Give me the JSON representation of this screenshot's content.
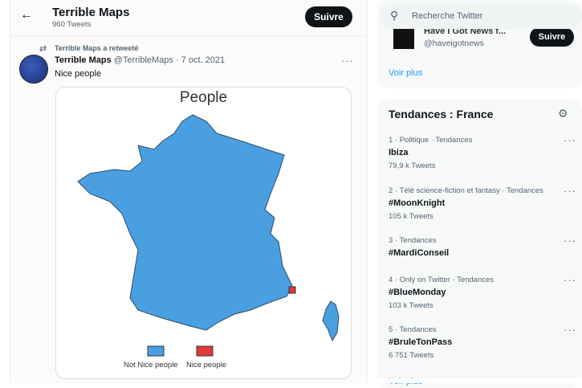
{
  "header": {
    "title": "Terrible Maps",
    "subtitle": "960 Tweets",
    "follow_label": "Suivre"
  },
  "tweet": {
    "retweet_label": "Terrible Maps a retweeté",
    "author": "Terrible Maps",
    "handle_date": "@TerribleMaps · 7 oct. 2021",
    "text": "Nice people",
    "image": {
      "title": "People",
      "legend": [
        {
          "label": "Not Nice people",
          "color": "#4a9fe0"
        },
        {
          "label": "Nice people",
          "color": "#e03a3a"
        }
      ]
    }
  },
  "search": {
    "placeholder": "Recherche Twitter"
  },
  "suggest": {
    "name": "Have I Got News f...",
    "handle": "@haveigotnews",
    "follow_label": "Suivre",
    "more": "Voir plus"
  },
  "trends": {
    "title": "Tendances : France",
    "items": [
      {
        "meta": "1 · Politique · Tendances",
        "tag": "Ibiza",
        "count": "79,9 k Tweets"
      },
      {
        "meta": "2 · Télé science-fiction et fantasy · Tendances",
        "tag": "#MoonKnight",
        "count": "105 k Tweets"
      },
      {
        "meta": "3 · Tendances",
        "tag": "#MardiConseil",
        "count": ""
      },
      {
        "meta": "4 · Only on Twitter · Tendances",
        "tag": "#BlueMonday",
        "count": "103 k Tweets"
      },
      {
        "meta": "5 · Tendances",
        "tag": "#BruleTonPass",
        "count": "6 751 Tweets"
      }
    ],
    "more": "Voir plus"
  },
  "colors": {
    "accent": "#1d9bf0",
    "map_blue": "#4a9fe0",
    "map_red": "#e03a3a"
  }
}
